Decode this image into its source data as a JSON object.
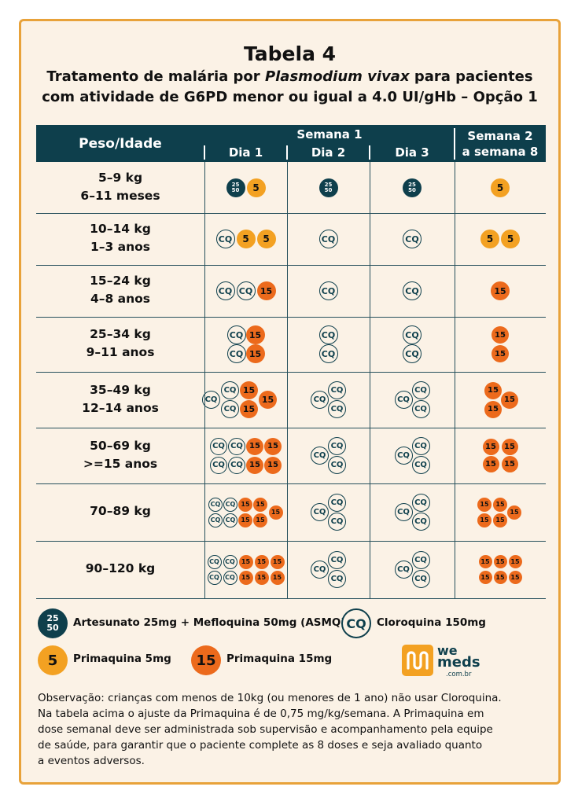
{
  "title": "Tabela 4",
  "subtitle_line1_a": "Tratamento de malária por ",
  "subtitle_line1_b": "Plasmodium vivax",
  "subtitle_line1_c": " para pacientes",
  "subtitle_line2": "com atividade de G6PD menor ou igual a 4.0  UI/gHb – Opção 1",
  "header": {
    "weight_age": "Peso/Idade",
    "week1": "Semana 1",
    "day1": "Dia 1",
    "day2": "Dia 2",
    "day3": "Dia 3",
    "week2_line1": "Semana 2",
    "week2_line2": "a semana 8"
  },
  "pill_text": {
    "cq": "CQ",
    "p5": "5",
    "p15": "15",
    "asmq_top": "25",
    "asmq_bottom": "50"
  },
  "rows": [
    {
      "weight": "5–9 kg",
      "age": "6–11 meses",
      "day1": [
        "asmq",
        "p5"
      ],
      "day2": [
        "asmq"
      ],
      "day3": [
        "asmq"
      ],
      "week2": [
        "p5"
      ]
    },
    {
      "weight": "10–14 kg",
      "age": "1–3 anos",
      "day1": [
        "cq",
        "p5",
        "p5"
      ],
      "day2": [
        "cq"
      ],
      "day3": [
        "cq"
      ],
      "week2": [
        "p5",
        "p5"
      ]
    },
    {
      "weight": "15–24 kg",
      "age": "4–8 anos",
      "day1": [
        "cq",
        "cq",
        "p15"
      ],
      "day2": [
        "cq"
      ],
      "day3": [
        "cq"
      ],
      "week2": [
        "p15"
      ]
    },
    {
      "weight": "25–34 kg",
      "age": "9–11 anos",
      "day1": [
        "cq",
        "p15",
        "cq",
        "p15"
      ],
      "day2": [
        "cq",
        "cq"
      ],
      "day3": [
        "cq",
        "cq"
      ],
      "week2": [
        "p15",
        "p15"
      ]
    },
    {
      "weight": "35–49 kg",
      "age": "12–14 anos",
      "day1": [
        "cq",
        "cq",
        "cq",
        "p15",
        "p15",
        "p15"
      ],
      "day2": [
        "cq",
        "cq",
        "cq"
      ],
      "day3": [
        "cq",
        "cq",
        "cq"
      ],
      "week2": [
        "p15",
        "p15",
        "p15"
      ]
    },
    {
      "weight": "50–69 kg",
      "age": ">=15 anos",
      "day1": [
        "cq",
        "cq",
        "p15",
        "p15",
        "cq",
        "cq",
        "p15",
        "p15"
      ],
      "day2": [
        "cq",
        "cq",
        "cq"
      ],
      "day3": [
        "cq",
        "cq",
        "cq"
      ],
      "week2": [
        "p15",
        "p15",
        "p15",
        "p15"
      ]
    },
    {
      "weight": "70–89 kg",
      "age": "",
      "day1": [
        "cq",
        "cq",
        "p15",
        "p15",
        "p15",
        "cq",
        "cq",
        "p15",
        "p15"
      ],
      "day2": [
        "cq",
        "cq",
        "cq"
      ],
      "day3": [
        "cq",
        "cq",
        "cq"
      ],
      "week2": [
        "p15",
        "p15",
        "p15",
        "p15",
        "p15"
      ]
    },
    {
      "weight": "90–120 kg",
      "age": "",
      "day1": [
        "cq",
        "cq",
        "p15",
        "p15",
        "p15",
        "cq",
        "cq",
        "p15",
        "p15",
        "p15"
      ],
      "day2": [
        "cq",
        "cq",
        "cq"
      ],
      "day3": [
        "cq",
        "cq",
        "cq"
      ],
      "week2": [
        "p15",
        "p15",
        "p15",
        "p15",
        "p15",
        "p15"
      ]
    }
  ],
  "legend": {
    "asmq": "Artesunato 25mg + Mefloquina 50mg (ASMQ)",
    "cq": "Cloroquina 150mg",
    "p5": "Primaquina 5mg",
    "p15": "Primaquina 15mg"
  },
  "logo": {
    "line1": "we",
    "line2": "meds",
    "line3": ".com.br"
  },
  "note": [
    "Observação: crianças com menos de 10kg (ou menores de 1 ano) não usar Cloroquina.",
    "Na tabela acima o ajuste da Primaquina é de 0,75 mg/kg/semana. A Primaquina em",
    "dose semanal deve ser administrada sob supervisão e acompanhamento pela equipe",
    "de saúde, para garantir que o paciente complete as 8 doses e seja avaliado quanto",
    "a eventos adversos."
  ],
  "colors": {
    "navy": "#0e3f4c",
    "orange": "#f3a122",
    "dark_orange": "#ec6a1c",
    "background": "#fbf2e6",
    "border": "#e8a23a"
  }
}
